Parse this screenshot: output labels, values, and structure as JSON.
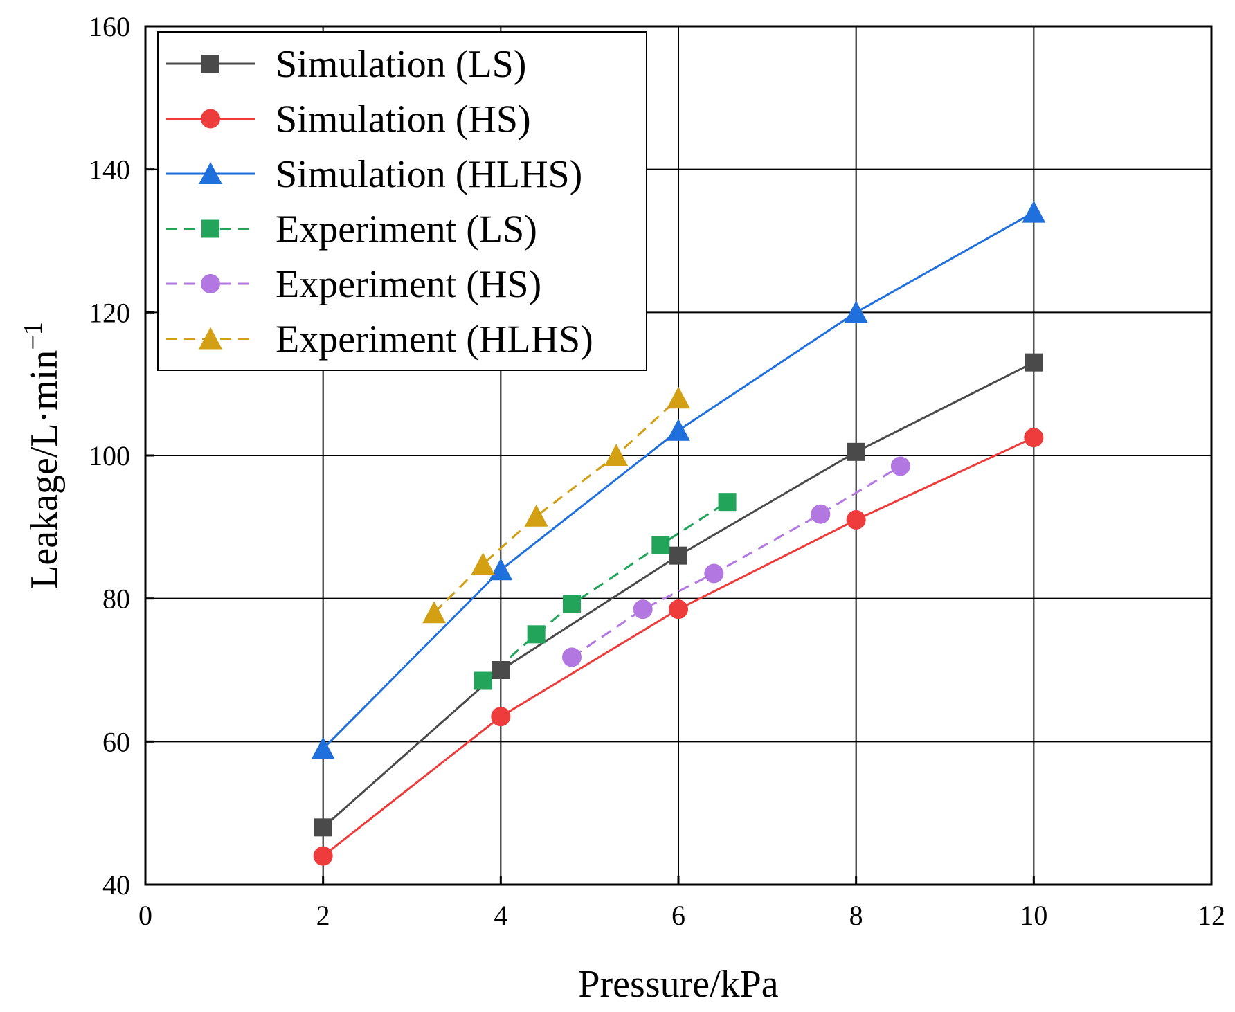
{
  "chart_data": {
    "type": "line",
    "title": "",
    "xlabel": "Pressure/kPa",
    "ylabel": "Leakage/L·min",
    "ylabel_superscript": "−1",
    "xlim": [
      0,
      12
    ],
    "ylim": [
      40,
      160
    ],
    "xticks": [
      0,
      2,
      4,
      6,
      8,
      10,
      12
    ],
    "yticks": [
      40,
      60,
      80,
      100,
      120,
      140,
      160
    ],
    "grid": true,
    "legend_position": "top-left",
    "series": [
      {
        "name": "Simulation (LS)",
        "color": "#4a4a4a",
        "marker": "square",
        "dash": "solid",
        "x": [
          2,
          4,
          6,
          8,
          10
        ],
        "y": [
          48,
          70,
          86,
          100.5,
          113
        ]
      },
      {
        "name": "Simulation (HS)",
        "color": "#ee3b3b",
        "marker": "circle",
        "dash": "solid",
        "x": [
          2,
          4,
          6,
          8,
          10
        ],
        "y": [
          44,
          63.5,
          78.5,
          91,
          102.5
        ]
      },
      {
        "name": "Simulation (HLHS)",
        "color": "#1f6fdc",
        "marker": "triangle",
        "dash": "solid",
        "x": [
          2,
          4,
          6,
          8,
          10
        ],
        "y": [
          59,
          84,
          103.5,
          120,
          134
        ]
      },
      {
        "name": "Experiment (LS)",
        "color": "#22a55b",
        "marker": "square",
        "dash": "dashed",
        "x": [
          3.8,
          4.4,
          4.8,
          5.8,
          6.55
        ],
        "y": [
          68.5,
          75,
          79.2,
          87.5,
          93.5
        ]
      },
      {
        "name": "Experiment (HS)",
        "color": "#b277e0",
        "marker": "circle",
        "dash": "dashed",
        "x": [
          4.8,
          5.6,
          6.4,
          7.6,
          8.5
        ],
        "y": [
          71.8,
          78.5,
          83.5,
          91.8,
          98.5
        ]
      },
      {
        "name": "Experiment (HLHS)",
        "color": "#d4a013",
        "marker": "triangle",
        "dash": "dashed",
        "x": [
          3.25,
          3.8,
          4.4,
          5.3,
          6.0
        ],
        "y": [
          78,
          84.8,
          91.5,
          100,
          108
        ]
      }
    ]
  }
}
